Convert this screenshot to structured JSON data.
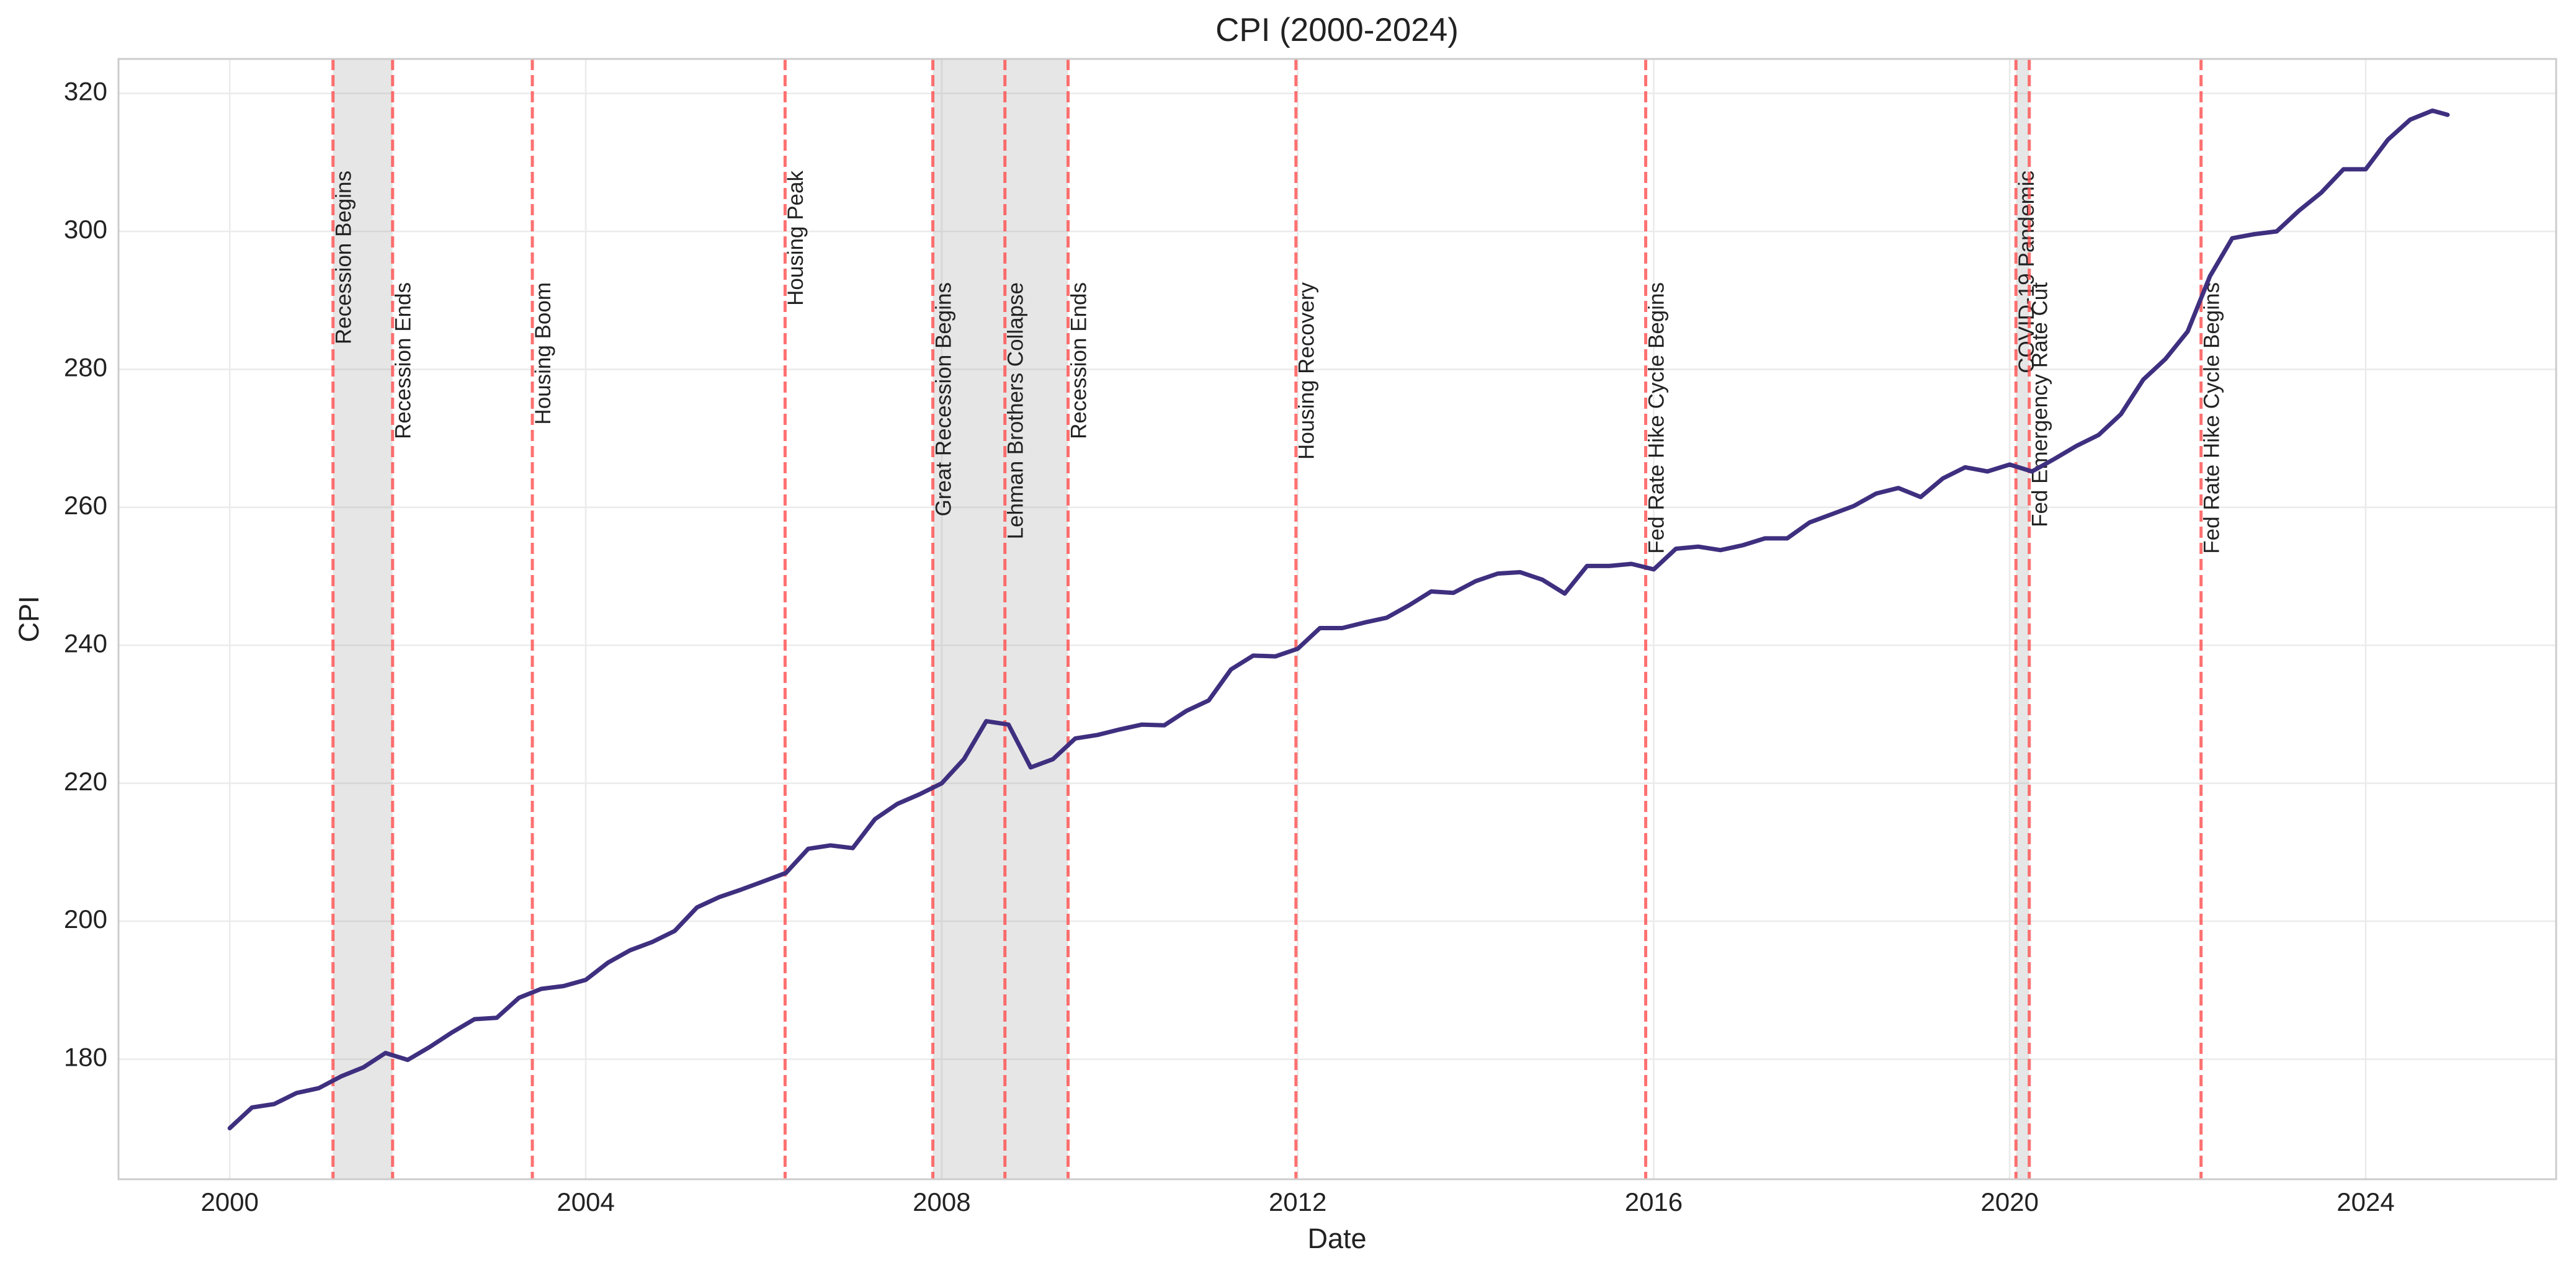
{
  "chart_data": {
    "type": "line",
    "title": "CPI (2000-2024)",
    "x_label": "Date",
    "y_label": "CPI",
    "color": "#3f2f7f",
    "grid": true,
    "xlim": [
      1998.75,
      2026.14
    ],
    "ylim": [
      162.6,
      325
    ],
    "xticks": [
      2000,
      2004,
      2008,
      2012,
      2016,
      2020,
      2024
    ],
    "yticks": [
      180,
      200,
      220,
      240,
      260,
      280,
      300,
      320
    ],
    "x": [
      2000.0,
      2000.25,
      2000.5,
      2000.75,
      2001.0,
      2001.25,
      2001.5,
      2001.75,
      2002.0,
      2002.25,
      2002.5,
      2002.75,
      2003.0,
      2003.25,
      2003.5,
      2003.75,
      2004.0,
      2004.25,
      2004.5,
      2004.75,
      2005.0,
      2005.25,
      2005.5,
      2005.75,
      2006.0,
      2006.25,
      2006.5,
      2006.75,
      2007.0,
      2007.25,
      2007.5,
      2007.75,
      2008.0,
      2008.25,
      2008.5,
      2008.75,
      2009.0,
      2009.25,
      2009.5,
      2009.75,
      2010.0,
      2010.25,
      2010.5,
      2010.75,
      2011.0,
      2011.25,
      2011.5,
      2011.75,
      2012.0,
      2012.25,
      2012.5,
      2012.75,
      2013.0,
      2013.25,
      2013.5,
      2013.75,
      2014.0,
      2014.25,
      2014.5,
      2014.75,
      2015.0,
      2015.25,
      2015.5,
      2015.75,
      2016.0,
      2016.25,
      2016.5,
      2016.75,
      2017.0,
      2017.25,
      2017.5,
      2017.75,
      2018.0,
      2018.25,
      2018.5,
      2018.75,
      2019.0,
      2019.25,
      2019.5,
      2019.75,
      2020.0,
      2020.25,
      2020.5,
      2020.75,
      2021.0,
      2021.25,
      2021.5,
      2021.75,
      2022.0,
      2022.25,
      2022.5,
      2022.75,
      2023.0,
      2023.25,
      2023.5,
      2023.75,
      2024.0,
      2024.25,
      2024.5,
      2024.75,
      2024.92
    ],
    "values": [
      170.0,
      173.0,
      173.5,
      175.1,
      175.8,
      177.5,
      178.8,
      180.9,
      179.9,
      181.8,
      183.9,
      185.8,
      186.0,
      188.9,
      190.2,
      190.6,
      191.5,
      194.0,
      195.8,
      197.0,
      198.6,
      202.0,
      203.5,
      204.6,
      205.8,
      207.0,
      210.5,
      211.0,
      210.6,
      214.8,
      217.0,
      218.4,
      220.0,
      223.5,
      229.0,
      228.5,
      222.3,
      223.5,
      226.5,
      227.0,
      227.8,
      228.5,
      228.4,
      230.5,
      232.0,
      236.5,
      238.5,
      238.4,
      239.5,
      242.5,
      242.5,
      243.3,
      244.0,
      245.8,
      247.8,
      247.6,
      249.3,
      250.4,
      250.6,
      249.5,
      247.5,
      251.5,
      251.5,
      251.8,
      251.0,
      254.0,
      254.3,
      253.8,
      254.5,
      255.5,
      255.5,
      257.8,
      259.0,
      260.2,
      262.0,
      262.8,
      261.5,
      264.2,
      265.8,
      265.2,
      266.2,
      265.2,
      267.0,
      268.9,
      270.5,
      273.5,
      278.5,
      281.5,
      285.5,
      293.5,
      299.0,
      299.6,
      300.0,
      303.0,
      305.6,
      309.0,
      309.0,
      313.3,
      316.2,
      317.5,
      316.9
    ],
    "shaded_regions": [
      [
        2001.16,
        2001.83
      ],
      [
        2007.9,
        2009.42
      ],
      [
        2020.07,
        2020.22
      ]
    ],
    "annotations": [
      {
        "x": 2001.16,
        "label": "Recession Begins"
      },
      {
        "x": 2001.83,
        "label": "Recession Ends"
      },
      {
        "x": 2003.4,
        "label": "Housing Boom"
      },
      {
        "x": 2006.24,
        "label": "Housing Peak"
      },
      {
        "x": 2007.9,
        "label": "Great Recession Begins"
      },
      {
        "x": 2008.71,
        "label": "Lehman Brothers Collapse"
      },
      {
        "x": 2009.42,
        "label": "Recession Ends"
      },
      {
        "x": 2011.98,
        "label": "Housing Recovery"
      },
      {
        "x": 2015.91,
        "label": "Fed Rate Hike Cycle Begins"
      },
      {
        "x": 2020.07,
        "label": "COVID-19 Pandemic"
      },
      {
        "x": 2020.22,
        "label": "Fed Emergency Rate Cut"
      },
      {
        "x": 2022.15,
        "label": "Fed Rate Hike Cycle Begins"
      }
    ]
  }
}
